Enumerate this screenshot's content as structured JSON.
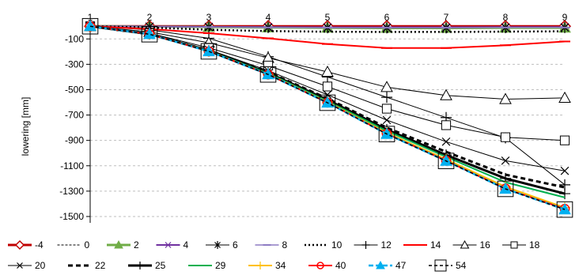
{
  "chart_data": {
    "type": "line",
    "ylabel": "lowering [mm]",
    "x": [
      1,
      2,
      3,
      4,
      5,
      6,
      7,
      8,
      9
    ],
    "x_tick_labels": [
      "1",
      "2",
      "3",
      "4",
      "5",
      "6",
      "7",
      "8",
      "9"
    ],
    "ylim": [
      -1550,
      20
    ],
    "y_ticks": [
      -100,
      -300,
      -500,
      -700,
      -900,
      -1100,
      -1300,
      -1500
    ],
    "y_tick_labels": [
      "-100",
      "-300",
      "-500",
      "-700",
      "-900",
      "-1100",
      "-1300",
      "-1500"
    ],
    "grid": "horizontal dashed",
    "legend_position": "bottom",
    "series": [
      {
        "name": "-4",
        "color": "#c00000",
        "marker": "diamond",
        "dash": "",
        "width": 3,
        "values": [
          0,
          0,
          0,
          0,
          0,
          0,
          0,
          0,
          0
        ]
      },
      {
        "name": "0",
        "color": "#000000",
        "marker": "none",
        "dash": "3,2",
        "width": 1,
        "values": [
          0,
          -5,
          -8,
          -12,
          -15,
          -18,
          -18,
          -14,
          -14
        ]
      },
      {
        "name": "2",
        "color": "#70ad47",
        "marker": "triangle-filled",
        "dash": "",
        "width": 3,
        "values": [
          0,
          -3,
          -6,
          -10,
          -12,
          -14,
          -14,
          -12,
          -12
        ]
      },
      {
        "name": "4",
        "color": "#7030a0",
        "marker": "x",
        "dash": "",
        "width": 2,
        "values": [
          0,
          -2,
          -4,
          -6,
          -8,
          -8,
          -8,
          -7,
          -7
        ]
      },
      {
        "name": "6",
        "color": "#000000",
        "marker": "star",
        "dash": "",
        "width": 1,
        "values": [
          0,
          -4,
          -7,
          -10,
          -12,
          -13,
          -13,
          -11,
          -10
        ]
      },
      {
        "name": "8",
        "color": "#8e7cc3",
        "marker": "dash",
        "dash": "",
        "width": 1.5,
        "values": [
          0,
          -4,
          -7,
          -10,
          -11,
          -12,
          -12,
          -10,
          -10
        ]
      },
      {
        "name": "10",
        "color": "#000000",
        "marker": "none",
        "dash": "2,3",
        "width": 2.5,
        "values": [
          0,
          -10,
          -28,
          -38,
          -43,
          -45,
          -45,
          -42,
          -40
        ]
      },
      {
        "name": "12",
        "color": "#000000",
        "marker": "plus",
        "dash": "",
        "width": 1,
        "values": [
          0,
          -28,
          -95,
          -240,
          -400,
          -560,
          -720,
          -880,
          -1250
        ]
      },
      {
        "name": "14",
        "color": "#ff0000",
        "marker": "dash",
        "dash": "",
        "width": 2,
        "values": [
          0,
          -22,
          -55,
          -95,
          -140,
          -172,
          -172,
          -150,
          -120
        ]
      },
      {
        "name": "16",
        "color": "#000000",
        "marker": "triangle-open",
        "dash": "",
        "width": 1,
        "values": [
          0,
          -45,
          -130,
          -250,
          -360,
          -480,
          -545,
          -575,
          -565
        ]
      },
      {
        "name": "18",
        "color": "#000000",
        "marker": "square",
        "dash": "",
        "width": 1,
        "values": [
          0,
          -55,
          -170,
          -310,
          -475,
          -650,
          -780,
          -875,
          -900
        ]
      },
      {
        "name": "20",
        "color": "#000000",
        "marker": "x",
        "dash": "",
        "width": 1,
        "values": [
          0,
          -60,
          -185,
          -350,
          -540,
          -740,
          -910,
          -1060,
          -1140
        ]
      },
      {
        "name": "22",
        "color": "#000000",
        "marker": "none",
        "dash": "6,4",
        "width": 3,
        "values": [
          0,
          -62,
          -190,
          -362,
          -570,
          -800,
          -990,
          -1170,
          -1270
        ]
      },
      {
        "name": "25",
        "color": "#000000",
        "marker": "plus",
        "dash": "",
        "width": 3,
        "values": [
          0,
          -62,
          -192,
          -368,
          -580,
          -815,
          -1015,
          -1200,
          -1320
        ]
      },
      {
        "name": "29",
        "color": "#00b050",
        "marker": "none",
        "dash": "",
        "width": 2,
        "values": [
          0,
          -63,
          -195,
          -372,
          -590,
          -825,
          -1030,
          -1230,
          -1350
        ]
      },
      {
        "name": "34",
        "color": "#ffc000",
        "marker": "plus",
        "dash": "",
        "width": 2,
        "values": [
          0,
          -63,
          -197,
          -378,
          -598,
          -840,
          -1050,
          -1265,
          -1430
        ]
      },
      {
        "name": "40",
        "color": "#ff0000",
        "marker": "circle",
        "dash": "",
        "width": 2,
        "values": [
          0,
          -63,
          -198,
          -380,
          -602,
          -848,
          -1060,
          -1280,
          -1440
        ]
      },
      {
        "name": "47",
        "color": "#00b0f0",
        "marker": "triangle-filled",
        "dash": "6,3",
        "width": 2.5,
        "values": [
          0,
          -63,
          -198,
          -380,
          -603,
          -850,
          -1062,
          -1282,
          -1445
        ]
      },
      {
        "name": "54",
        "color": "#000000",
        "marker": "square-big",
        "dash": "4,3",
        "width": 1.5,
        "values": [
          0,
          -63,
          -198,
          -380,
          -603,
          -850,
          -1062,
          -1282,
          -1445
        ]
      }
    ]
  }
}
